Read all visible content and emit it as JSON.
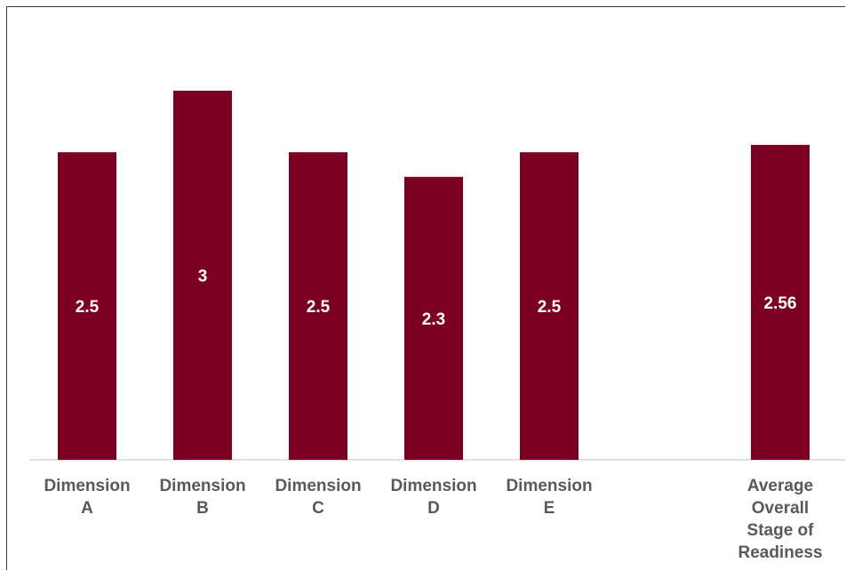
{
  "chart_data": {
    "type": "bar",
    "title": "",
    "xlabel": "",
    "ylabel": "",
    "categories": [
      [
        "Dimension",
        "A"
      ],
      [
        "Dimension",
        "B"
      ],
      [
        "Dimension",
        "C"
      ],
      [
        "Dimension",
        "D"
      ],
      [
        "Dimension",
        "E"
      ],
      [],
      [
        "Average",
        "Overall",
        "Stage of",
        "Readiness"
      ]
    ],
    "values": [
      2.5,
      3,
      2.5,
      2.3,
      2.5,
      null,
      2.56
    ],
    "value_labels": [
      "2.5",
      "3",
      "2.5",
      "2.3",
      "2.5",
      "",
      "2.56"
    ],
    "ylim": [
      0,
      3.0
    ],
    "grid": false,
    "legend": "none",
    "colors": {
      "bar": "#7b0021",
      "label_text": "#ffffff",
      "tick_text": "#595959",
      "axis": "#d9d9d9"
    }
  }
}
